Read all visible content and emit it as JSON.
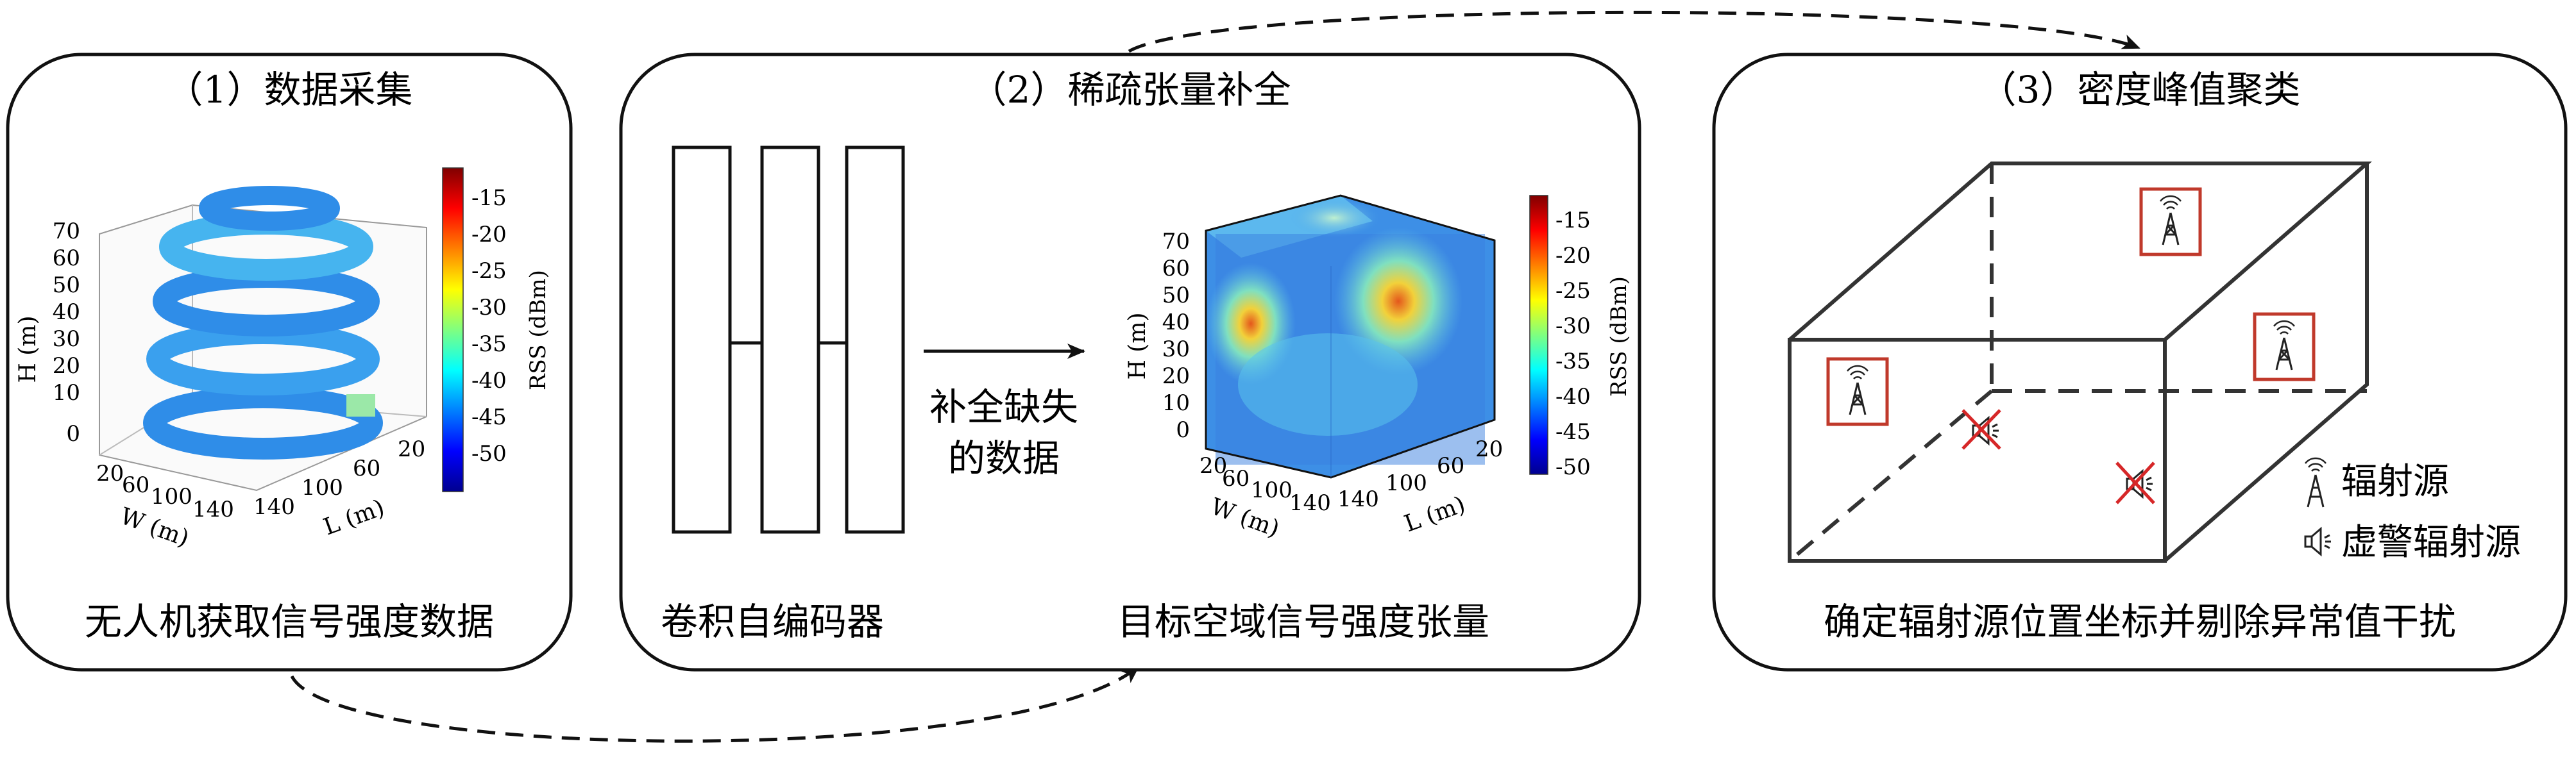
{
  "panels": [
    {
      "title": "（1）数据采集",
      "caption": "无人机获取信号强度数据",
      "plot": {
        "zlabel": "H (m)",
        "xlabel": "W (m)",
        "ylabel": "L (m)",
        "z_ticks": [
          "70",
          "60",
          "50",
          "40",
          "30",
          "20",
          "10",
          "0"
        ],
        "w_ticks": [
          "20",
          "60",
          "100",
          "140"
        ],
        "l_ticks": [
          "140",
          "100",
          "60",
          "20"
        ],
        "colorbar_label": "RSS (dBm)",
        "colorbar_ticks": [
          "-15",
          "-20",
          "-25",
          "-30",
          "-35",
          "-40",
          "-45",
          "-50"
        ]
      }
    },
    {
      "title": "（2）稀疏张量补全",
      "left_caption": "卷积自编码器",
      "right_caption": "目标空域信号强度张量",
      "arrow_label_line1": "补全缺失",
      "arrow_label_line2": "的数据",
      "plot": {
        "zlabel": "H (m)",
        "xlabel": "W (m)",
        "ylabel": "L (m)",
        "z_ticks": [
          "70",
          "60",
          "50",
          "40",
          "30",
          "20",
          "10",
          "0"
        ],
        "w_ticks": [
          "20",
          "60",
          "100",
          "140"
        ],
        "l_ticks": [
          "140",
          "100",
          "60",
          "20"
        ],
        "colorbar_label": "RSS (dBm)",
        "colorbar_ticks": [
          "-15",
          "-20",
          "-25",
          "-30",
          "-35",
          "-40",
          "-45",
          "-50"
        ]
      }
    },
    {
      "title": "（3）密度峰值聚类",
      "caption": "确定辐射源位置坐标并剔除异常值干扰",
      "legend": [
        {
          "icon": "radio-tower-icon",
          "label": "辐射源"
        },
        {
          "icon": "speaker-icon",
          "label": "虚警辐射源"
        }
      ]
    }
  ],
  "colors": {
    "frame": "#111111",
    "box_red": "#c0392b",
    "cross_red": "#d62728"
  }
}
